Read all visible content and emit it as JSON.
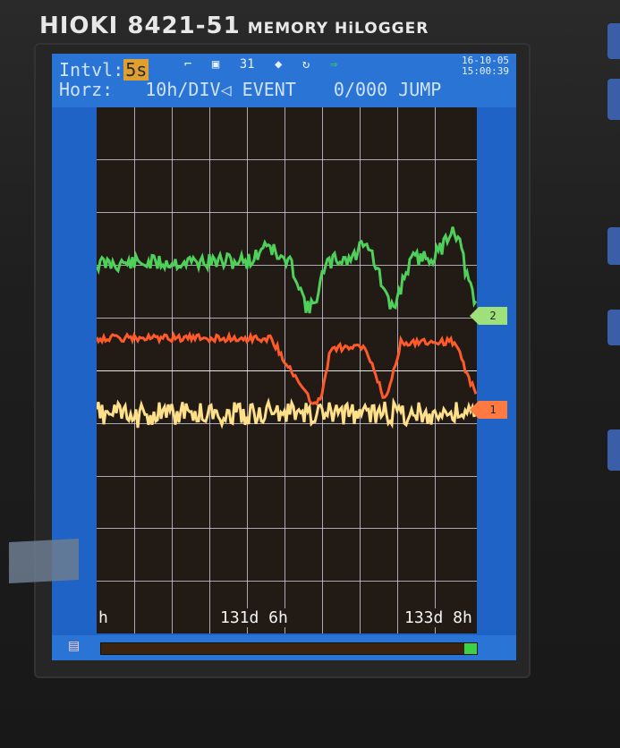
{
  "device": {
    "brand": "HIOKI",
    "model": "8421-51",
    "description": "MEMORY HiLOGGER"
  },
  "status": {
    "interval_label": "Intvl:",
    "interval_value": "5s",
    "horizontal_label": "Horz:",
    "horizontal_value": "10h/DIV",
    "mode": "EVENT",
    "event_count": "0/000",
    "jump_label": "JUMP",
    "channel_count": "31",
    "date": "16-10-05",
    "time": "15:00:39"
  },
  "axis": {
    "time_labels": [
      "h",
      "131d 6h",
      "133d 8h"
    ]
  },
  "markers": {
    "channel_2": "2",
    "channel_1": "1"
  },
  "progress": {
    "fraction": 0.97
  },
  "colors": {
    "screen_background": "#1f63c7",
    "plot_background": "#221a14",
    "trace_green": "#4fd05a",
    "trace_orange": "#ff5a2a",
    "trace_yellow": "#ffe08a"
  }
}
